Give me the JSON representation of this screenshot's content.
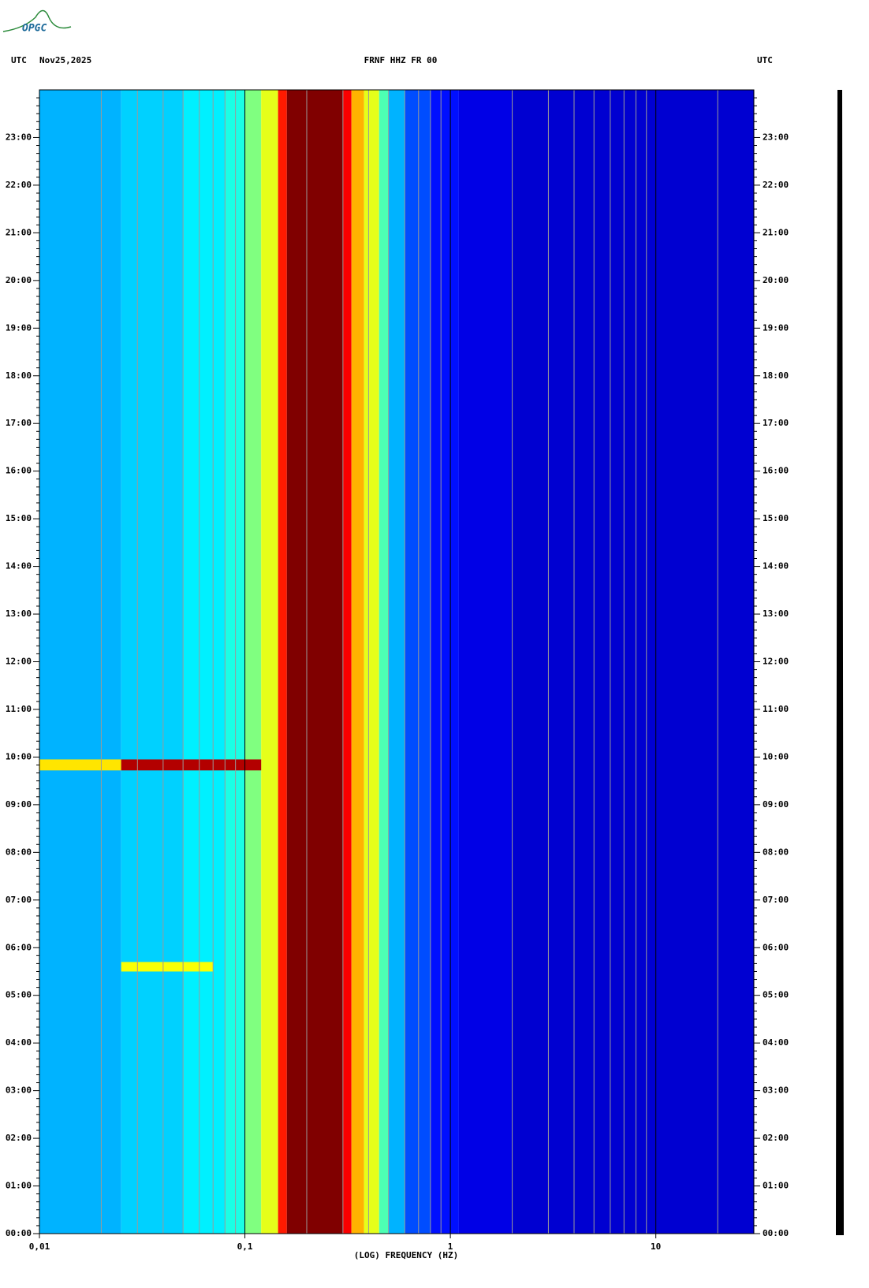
{
  "logo": "OPGC",
  "chart_data": {
    "type": "spectrogram",
    "title": "FRNF HHZ FR 00",
    "time_zone_label": "UTC",
    "date": "Nov25,2025",
    "x_label": "(LOG) FREQUENCY (HZ)",
    "xscale": "log",
    "colormap": "jet",
    "xlim": [
      0.01,
      30
    ],
    "xticks": [
      {
        "value": 0.01,
        "label": "0,01"
      },
      {
        "value": 0.1,
        "label": "0,1"
      },
      1,
      10
    ],
    "ylim": [
      0,
      24
    ],
    "yticks": [
      {
        "value": 0,
        "label": "00:00"
      },
      {
        "value": 1,
        "label": "01:00"
      },
      {
        "value": 2,
        "label": "02:00"
      },
      {
        "value": 3,
        "label": "03:00"
      },
      {
        "value": 4,
        "label": "04:00"
      },
      {
        "value": 5,
        "label": "05:00"
      },
      {
        "value": 6,
        "label": "06:00"
      },
      {
        "value": 7,
        "label": "07:00"
      },
      {
        "value": 8,
        "label": "08:00"
      },
      {
        "value": 9,
        "label": "09:00"
      },
      {
        "value": 10,
        "label": "10:00"
      },
      {
        "value": 11,
        "label": "11:00"
      },
      {
        "value": 12,
        "label": "12:00"
      },
      {
        "value": 13,
        "label": "13:00"
      },
      {
        "value": 14,
        "label": "14:00"
      },
      {
        "value": 15,
        "label": "15:00"
      },
      {
        "value": 16,
        "label": "16:00"
      },
      {
        "value": 17,
        "label": "17:00"
      },
      {
        "value": 18,
        "label": "18:00"
      },
      {
        "value": 19,
        "label": "19:00"
      },
      {
        "value": 20,
        "label": "20:00"
      },
      {
        "value": 21,
        "label": "21:00"
      },
      {
        "value": 22,
        "label": "22:00"
      },
      {
        "value": 23,
        "label": "23:00"
      }
    ],
    "grid": true,
    "freq_edges": [
      0.01,
      0.025,
      0.05,
      0.08,
      0.1,
      0.12,
      0.145,
      0.16,
      0.3,
      0.33,
      0.38,
      0.45,
      0.5,
      0.6,
      0.8,
      1.1,
      2,
      30
    ],
    "levels": [
      0.3,
      0.33,
      0.36,
      0.4,
      0.5,
      0.6,
      0.85,
      1,
      0.88,
      0.7,
      0.6,
      0.45,
      0.3,
      0.2,
      0.14,
      0.1,
      0.08
    ],
    "events": [
      {
        "t0": 9.72,
        "t1": 9.95,
        "f0": 0.01,
        "f1": 0.025,
        "level": 0.65
      },
      {
        "t0": 9.72,
        "t1": 9.95,
        "f0": 0.025,
        "f1": 0.12,
        "level": 0.95
      },
      {
        "t0": 5.5,
        "t1": 5.7,
        "f0": 0.025,
        "f1": 0.07,
        "level": 0.62
      }
    ]
  }
}
